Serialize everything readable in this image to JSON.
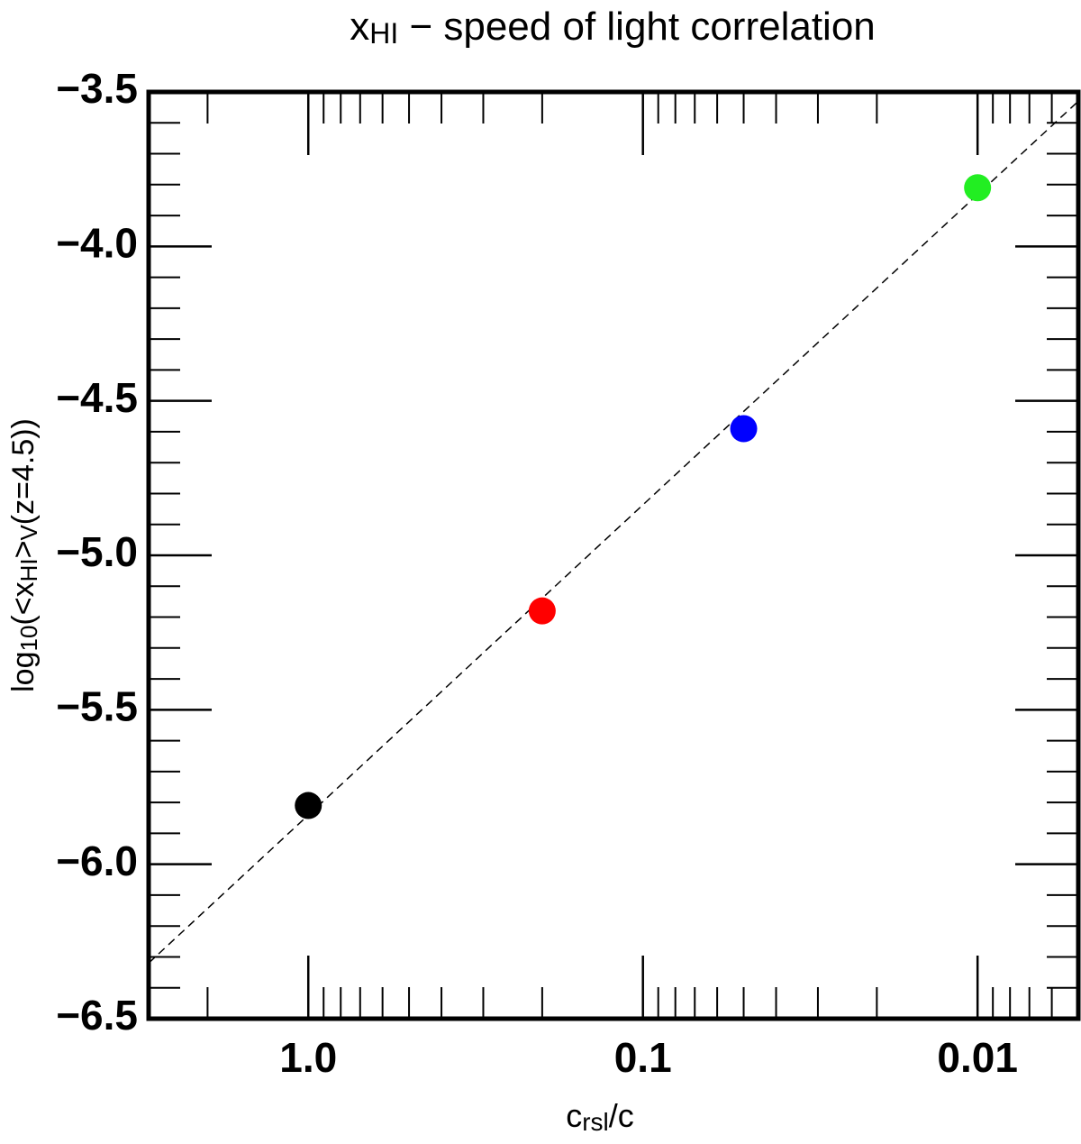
{
  "chart_data": {
    "type": "scatter",
    "title": [
      "x",
      "HI",
      " − speed of light correlation"
    ],
    "x_label": [
      "c",
      "rsl",
      "/c"
    ],
    "y_label": [
      "log",
      "10",
      "(<x",
      "HI",
      ">",
      "V",
      "(z=4.5))"
    ],
    "xscale": "log",
    "x": [
      1,
      0.2,
      0.05,
      0.01
    ],
    "values": [
      -5.81,
      -5.18,
      -4.59,
      -3.81
    ],
    "colors": [
      "#000000",
      "#ff0000",
      "#0000ff",
      "#22ee22"
    ],
    "fit_line": {
      "x": [
        3,
        0.005
      ],
      "values": [
        -6.32,
        -3.53
      ]
    },
    "xlim": [
      3,
      0.005
    ],
    "ylim": [
      -6.5,
      -3.5
    ],
    "xticks": [
      {
        "value": 1,
        "label": "1.0"
      },
      0.1,
      0.01
    ],
    "yticks": [
      {
        "value": -3.5,
        "label": "−3.5"
      },
      {
        "value": -4.0,
        "label": "−4.0"
      },
      {
        "value": -4.5,
        "label": "−4.5"
      },
      {
        "value": -5.0,
        "label": "−5.0"
      },
      {
        "value": -5.5,
        "label": "−5.5"
      },
      {
        "value": -6.0,
        "label": "−6.0"
      },
      {
        "value": -6.5,
        "label": "−6.5"
      }
    ]
  }
}
